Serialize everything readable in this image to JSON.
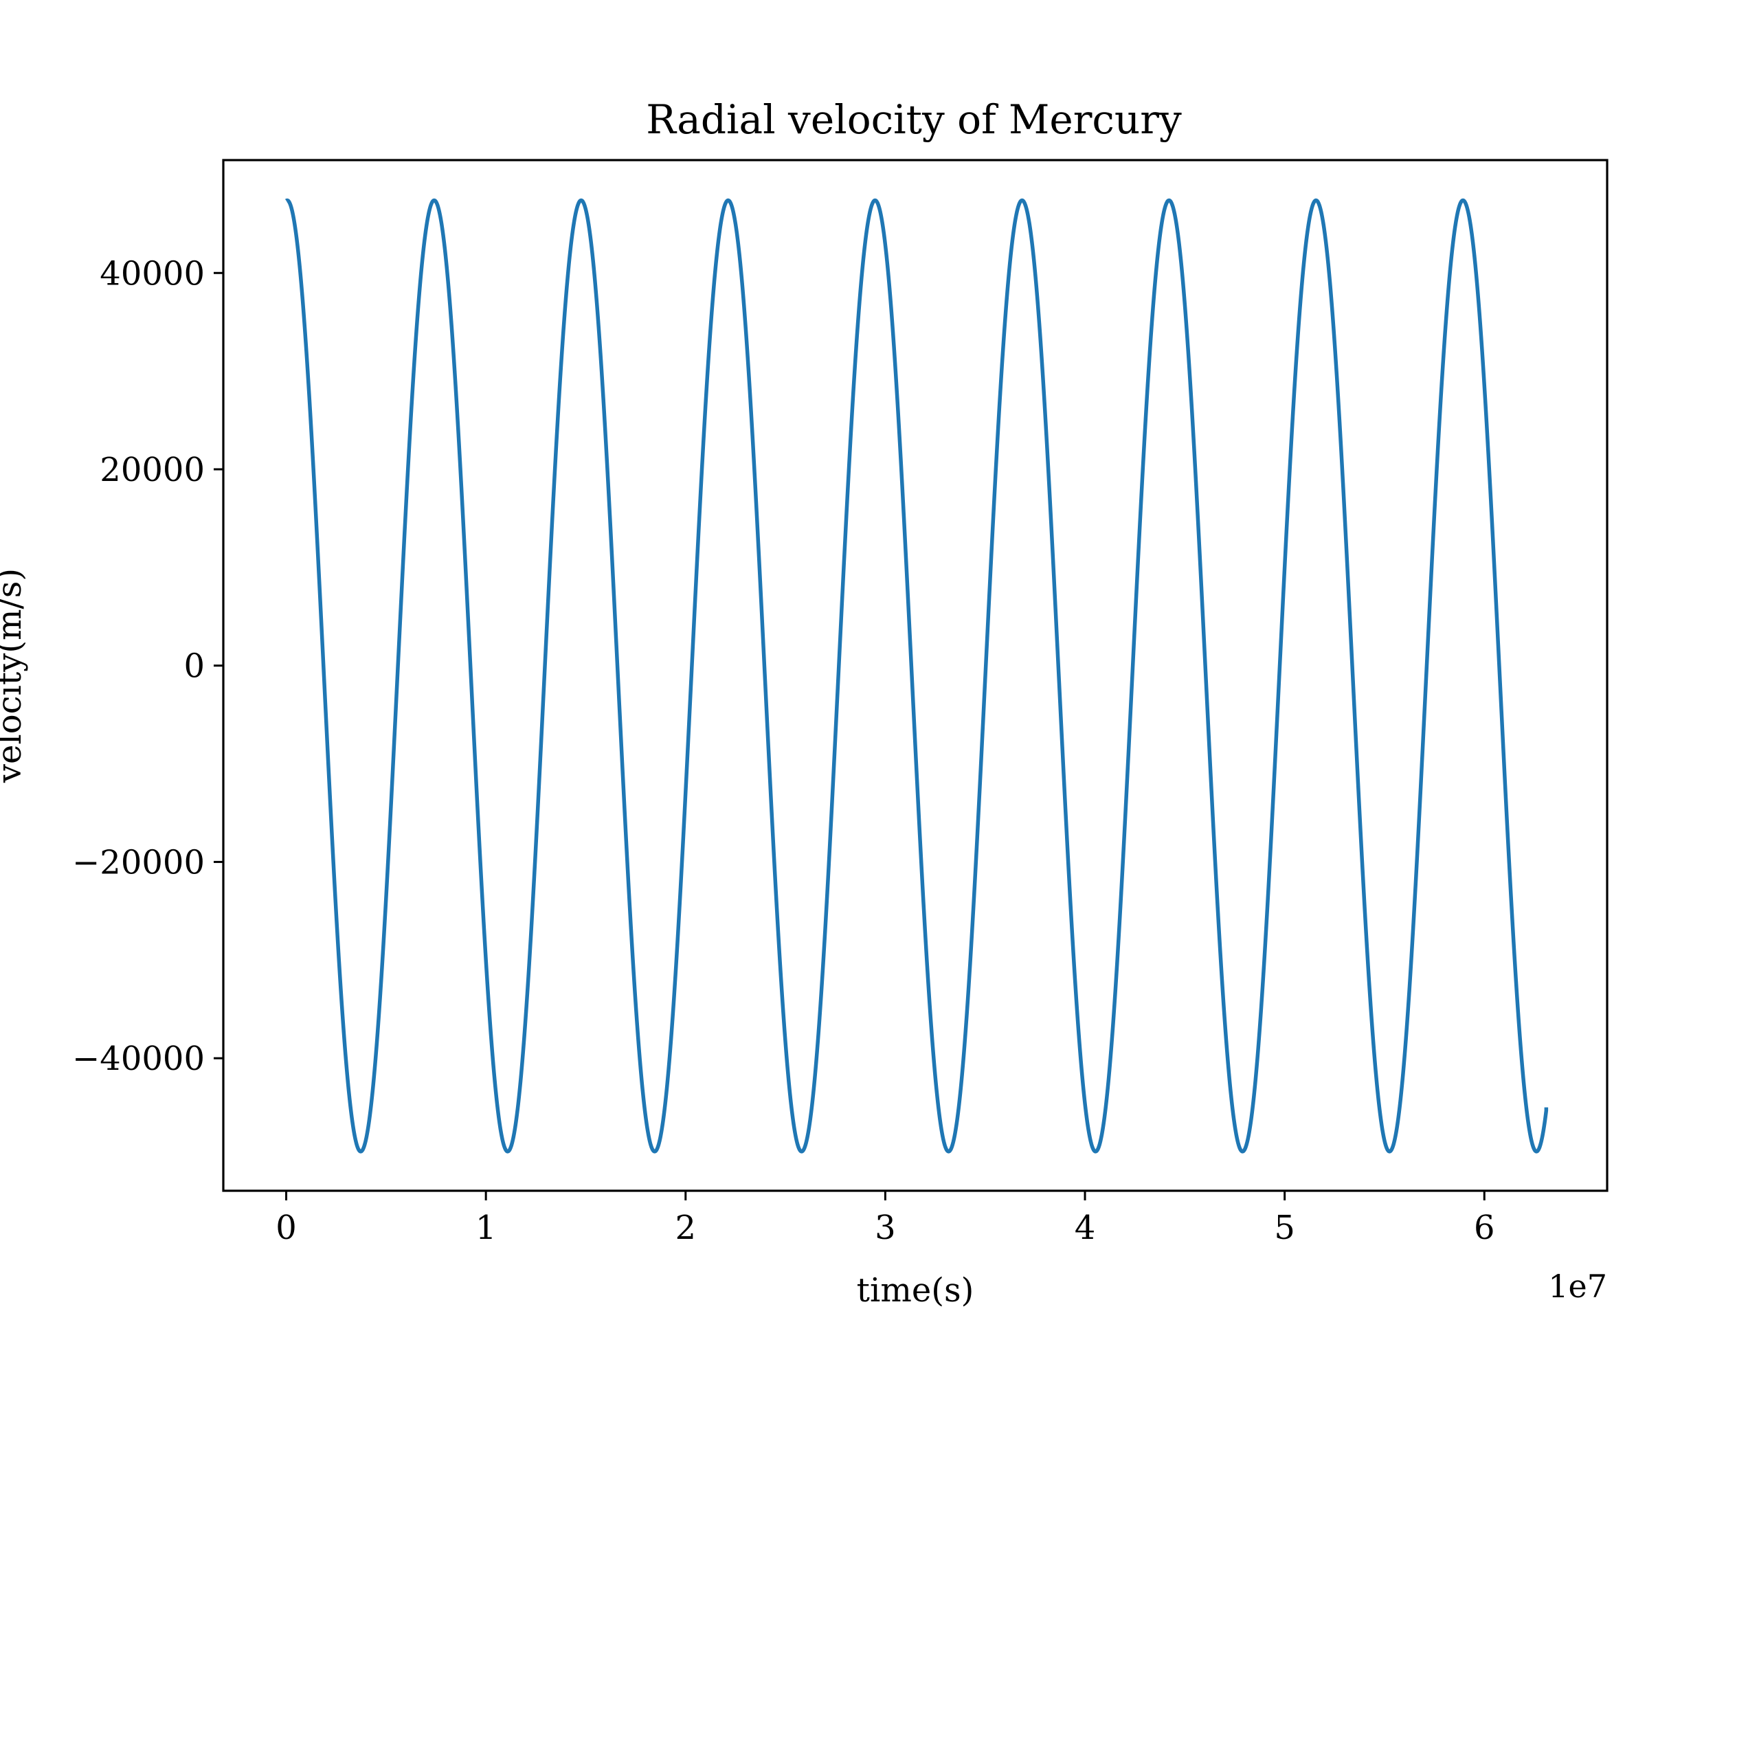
{
  "chart_data": {
    "type": "line",
    "title": "Radial velocity of Mercury",
    "xlabel": "time(s)",
    "ylabel": "velocity(m/s)",
    "x_offset_label": "1e7",
    "xlim": [
      -3150000,
      66150000
    ],
    "ylim": [
      -53500,
      51500
    ],
    "x_ticks": [
      0,
      10000000,
      20000000,
      30000000,
      40000000,
      50000000,
      60000000
    ],
    "x_tick_labels": [
      "0",
      "1",
      "2",
      "3",
      "4",
      "5",
      "6"
    ],
    "y_ticks": [
      -40000,
      -20000,
      0,
      20000,
      40000
    ],
    "y_tick_labels": [
      "−40000",
      "−20000",
      "0",
      "20000",
      "40000"
    ],
    "grid": false,
    "series": [
      {
        "color": "#1f77b4",
        "model": "periodic",
        "period_s": 7360000,
        "phase_s": 50000,
        "max_velocity": 47400,
        "min_velocity": -49500,
        "x_start": 0,
        "x_end": 63100000,
        "y_end": -45000
      }
    ]
  }
}
